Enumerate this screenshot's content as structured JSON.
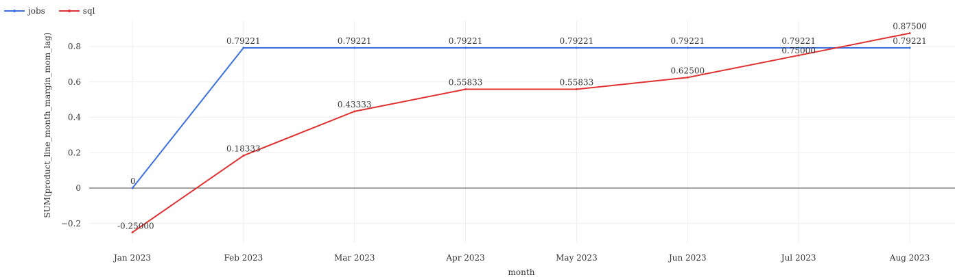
{
  "chart_data": {
    "type": "line",
    "categories": [
      "Jan 2023",
      "Feb 2023",
      "Mar 2023",
      "Apr 2023",
      "May 2023",
      "Jun 2023",
      "Jul 2023",
      "Aug 2023"
    ],
    "series": [
      {
        "name": "jobs",
        "color": "#3b6fe0",
        "values": [
          0,
          0.79221,
          0.79221,
          0.79221,
          0.79221,
          0.79221,
          0.79221,
          0.79221
        ],
        "labels": [
          "0",
          "0.79221",
          "0.79221",
          "0.79221",
          "0.79221",
          "0.79221",
          "0.79221",
          "0.79221"
        ]
      },
      {
        "name": "sql",
        "color": "#e03030",
        "values": [
          -0.25,
          0.18333,
          0.43333,
          0.55833,
          0.55833,
          0.625,
          0.75,
          0.875
        ],
        "labels": [
          "-0.25000",
          "0.18333",
          "0.43333",
          "0.55833",
          "0.55833",
          "0.62500",
          "0.75000",
          "0.87500"
        ]
      }
    ],
    "xlabel": "month",
    "ylabel": "SUM(product_line_month_margin_mom_lag)",
    "yticks": [
      -0.2,
      0,
      0.2,
      0.4,
      0.6,
      0.8
    ],
    "ytick_labels": [
      "−0.2",
      "0",
      "0.2",
      "0.4",
      "0.6",
      "0.8"
    ],
    "ylim": [
      -0.3,
      0.9
    ],
    "grid": true,
    "legend_position": "top-left"
  }
}
